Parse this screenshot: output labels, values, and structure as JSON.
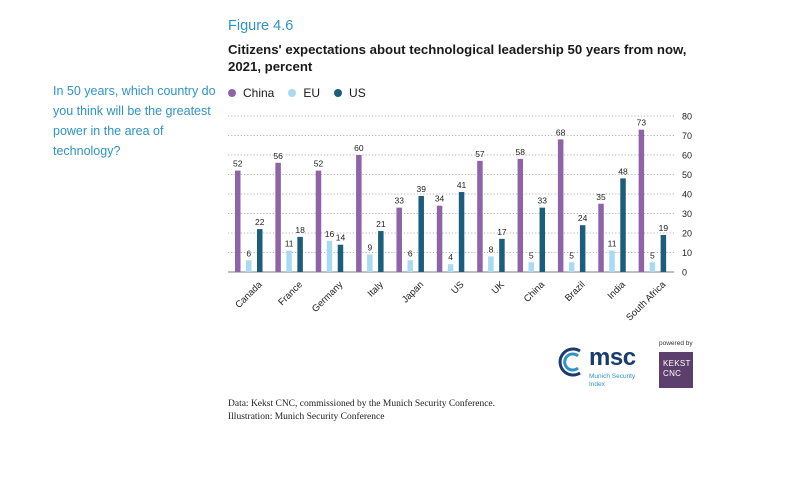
{
  "side_question": "In 50 years, which country do you think will be the greatest power in the area of technology?",
  "figure_label": "Figure 4.6",
  "title": "Citizens' expectations about technological leadership 50 years from now, 2021, percent",
  "colors": {
    "accent": "#2f93c6",
    "china": "#8e63a8",
    "eu": "#a8daf2",
    "us": "#1d5d7c"
  },
  "chart_data": {
    "type": "bar",
    "categories": [
      "Canada",
      "France",
      "Germany",
      "Italy",
      "Japan",
      "US",
      "UK",
      "China",
      "Brazil",
      "India",
      "South Africa"
    ],
    "series": [
      {
        "name": "China",
        "values": [
          52,
          56,
          52,
          60,
          33,
          34,
          57,
          58,
          68,
          35,
          73
        ]
      },
      {
        "name": "EU",
        "values": [
          6,
          11,
          16,
          9,
          6,
          4,
          8,
          5,
          5,
          11,
          5
        ]
      },
      {
        "name": "US",
        "values": [
          22,
          18,
          14,
          21,
          39,
          41,
          17,
          33,
          24,
          48,
          19
        ]
      }
    ],
    "ylim": [
      0,
      80
    ],
    "yticks": [
      0,
      10,
      20,
      30,
      40,
      50,
      60,
      70,
      80
    ],
    "grid": true,
    "legend_position": "top-left"
  },
  "source_lines": [
    "Data: Kekst CNC, commissioned by the Munich Security Conference.",
    "Illustration: Munich Security Conference"
  ],
  "logos": {
    "msc": "msc",
    "msc_sub": "Munich Security Index",
    "powered_by": "powered by",
    "kekst": "KEKST CNC"
  }
}
